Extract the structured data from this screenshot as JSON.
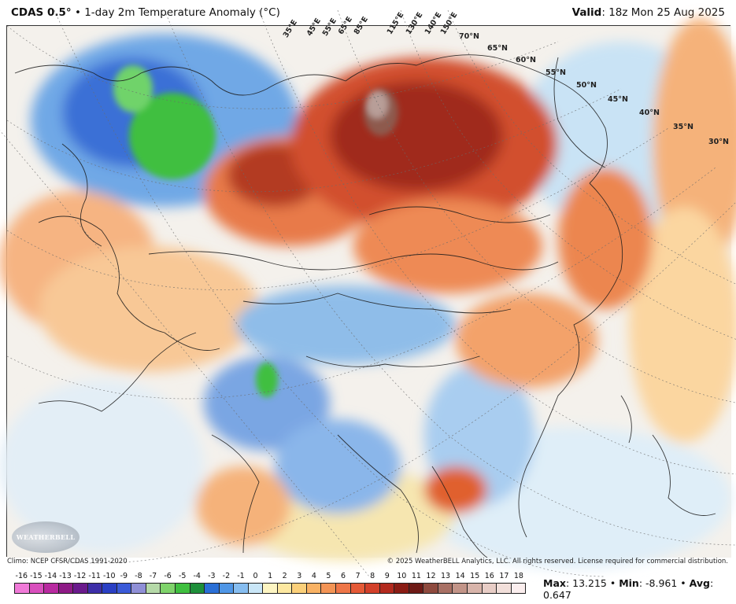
{
  "header": {
    "model": "CDAS 0.5°",
    "separator": " • ",
    "product": "1-day 2m Temperature Anomaly (°C)",
    "valid_label": "Valid",
    "valid_time": ": 18z Mon 25 Aug 2025"
  },
  "map": {
    "lat_labels": [
      {
        "text": "70°N"
      },
      {
        "text": "65°N"
      },
      {
        "text": "60°N"
      },
      {
        "text": "55°N"
      },
      {
        "text": "50°N"
      },
      {
        "text": "45°N"
      },
      {
        "text": "40°N"
      },
      {
        "text": "35°N"
      },
      {
        "text": "30°N"
      }
    ],
    "lon_labels": [
      {
        "text": "35°E"
      },
      {
        "text": "45°E"
      },
      {
        "text": "55°E"
      },
      {
        "text": "65°E"
      },
      {
        "text": "85°E"
      },
      {
        "text": "115°E"
      },
      {
        "text": "130°E"
      },
      {
        "text": "140°E"
      },
      {
        "text": "150°E"
      }
    ],
    "logo_text": "WEATHERBELL"
  },
  "footer": {
    "climo": "Climo: NCEP CFSR/CDAS 1991-2020",
    "copyright": "© 2025 WeatherBELL Analytics, LLC. All rights reserved. License required for commercial distribution."
  },
  "colorbar": {
    "labels": [
      "-16",
      "-15",
      "-14",
      "-13",
      "-12",
      "-11",
      "-10",
      "-9",
      "-8",
      "-7",
      "-6",
      "-5",
      "-4",
      "-3",
      "-2",
      "-1",
      "0",
      "1",
      "2",
      "3",
      "4",
      "5",
      "6",
      "7",
      "8",
      "9",
      "10",
      "11",
      "12",
      "13",
      "14",
      "15",
      "16",
      "17",
      "18"
    ],
    "colors": [
      "#f07ad8",
      "#d94fbd",
      "#b82aa0",
      "#8e1a86",
      "#6a1a8c",
      "#3d2ea8",
      "#2a3fc4",
      "#3a5ad8",
      "#8f8fd6",
      "#b5d9a8",
      "#7fd36b",
      "#3fbf3f",
      "#1e8f3a",
      "#2a6fd6",
      "#4f96e6",
      "#86bdf0",
      "#c9e6f7",
      "#fdf5c2",
      "#fde8a0",
      "#fbd07a",
      "#f9b264",
      "#f39455",
      "#ee7648",
      "#e55a37",
      "#d2402a",
      "#b32a1e",
      "#8a1c14",
      "#6e1a16",
      "#8e4a3e",
      "#a87064",
      "#c29488",
      "#d8b4aa",
      "#e8cdc6",
      "#f2dfda",
      "#fbeeee"
    ]
  },
  "stats": {
    "max_label": "Max",
    "max_value": ": 13.215",
    "sep1": " • ",
    "min_label": "Min",
    "min_value": ": -8.961",
    "sep2": " • ",
    "avg_label": "Avg",
    "avg_value": ": 0.647"
  }
}
